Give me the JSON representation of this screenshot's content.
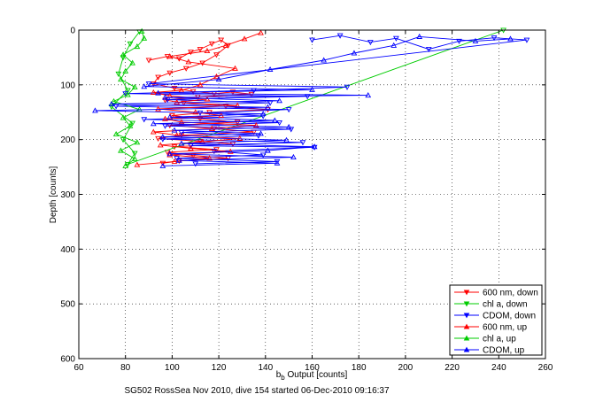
{
  "chart_data": {
    "type": "line",
    "caption": "SG502 RossSea Nov 2010, dive 154 started 06-Dec-2010 09:16:37",
    "xlabel_main": "b",
    "xlabel_sub": "b",
    "xlabel_rest": " Output [counts]",
    "ylabel": "Depth [counts]",
    "xlim": [
      60,
      260
    ],
    "ylim": [
      0,
      600
    ],
    "y_reversed": true,
    "grid": true,
    "legend_position": "bottom-right",
    "xticks": [
      "60",
      "80",
      "100",
      "120",
      "140",
      "160",
      "180",
      "200",
      "220",
      "240",
      "260"
    ],
    "yticks": [
      "0",
      "100",
      "200",
      "300",
      "400",
      "500",
      "600"
    ],
    "series": [
      {
        "name": "600 nm, down",
        "color": "#ff0000",
        "marker": "triangle-down",
        "points": [
          [
            90,
            55
          ],
          [
            98,
            48
          ],
          [
            103,
            52
          ],
          [
            108,
            40
          ],
          [
            112,
            35
          ],
          [
            117,
            25
          ],
          [
            121,
            18
          ],
          [
            124,
            28
          ],
          [
            119,
            45
          ],
          [
            113,
            60
          ],
          [
            106,
            70
          ],
          [
            99,
            78
          ],
          [
            94,
            86
          ],
          [
            92,
            98
          ],
          [
            101,
            106
          ],
          [
            109,
            112
          ],
          [
            118,
            116
          ],
          [
            126,
            113
          ],
          [
            134,
            117
          ],
          [
            111,
            122
          ],
          [
            97,
            128
          ],
          [
            105,
            133
          ],
          [
            123,
            139
          ],
          [
            141,
            145
          ],
          [
            116,
            150
          ],
          [
            100,
            156
          ],
          [
            112,
            162
          ],
          [
            128,
            168
          ],
          [
            99,
            174
          ],
          [
            118,
            180
          ],
          [
            135,
            186
          ],
          [
            104,
            192
          ],
          [
            94,
            198
          ],
          [
            112,
            203
          ],
          [
            126,
            208
          ],
          [
            101,
            213
          ],
          [
            119,
            218
          ],
          [
            98,
            223
          ],
          [
            109,
            229
          ],
          [
            124,
            234
          ],
          [
            103,
            239
          ],
          [
            96,
            243
          ]
        ]
      },
      {
        "name": "chl a, down",
        "color": "#00cc00",
        "marker": "triangle-down",
        "points": [
          [
            86,
            3
          ],
          [
            82,
            25
          ],
          [
            79,
            50
          ],
          [
            77,
            80
          ],
          [
            81,
            110
          ],
          [
            74,
            140
          ],
          [
            83,
            170
          ],
          [
            79,
            200
          ],
          [
            84,
            225
          ],
          [
            81,
            245
          ],
          [
            242,
            0
          ]
        ]
      },
      {
        "name": "CDOM, down",
        "color": "#0000ff",
        "marker": "triangle-down",
        "points": [
          [
            160,
            18
          ],
          [
            172,
            10
          ],
          [
            185,
            22
          ],
          [
            196,
            15
          ],
          [
            210,
            35
          ],
          [
            223,
            20
          ],
          [
            238,
            14
          ],
          [
            252,
            18
          ],
          [
            90,
            98
          ],
          [
            175,
            104
          ],
          [
            135,
            110
          ],
          [
            80,
            116
          ],
          [
            158,
            121
          ],
          [
            98,
            127
          ],
          [
            142,
            133
          ],
          [
            76,
            139
          ],
          [
            150,
            145
          ],
          [
            112,
            151
          ],
          [
            139,
            157
          ],
          [
            88,
            163
          ],
          [
            146,
            169
          ],
          [
            97,
            175
          ],
          [
            151,
            181
          ],
          [
            104,
            187
          ],
          [
            137,
            193
          ],
          [
            96,
            199
          ],
          [
            156,
            205
          ],
          [
            108,
            211
          ],
          [
            161,
            214
          ],
          [
            118,
            221
          ],
          [
            139,
            228
          ],
          [
            102,
            234
          ],
          [
            145,
            240
          ],
          [
            110,
            244
          ]
        ]
      },
      {
        "name": "600 nm, up",
        "color": "#ff0000",
        "marker": "triangle-up",
        "points": [
          [
            85,
            246
          ],
          [
            101,
            240
          ],
          [
            116,
            234
          ],
          [
            99,
            228
          ],
          [
            125,
            222
          ],
          [
            108,
            216
          ],
          [
            95,
            210
          ],
          [
            113,
            204
          ],
          [
            129,
            198
          ],
          [
            102,
            192
          ],
          [
            92,
            186
          ],
          [
            117,
            180
          ],
          [
            136,
            174
          ],
          [
            104,
            168
          ],
          [
            97,
            162
          ],
          [
            121,
            156
          ],
          [
            110,
            150
          ],
          [
            94,
            144
          ],
          [
            128,
            138
          ],
          [
            102,
            132
          ],
          [
            115,
            126
          ],
          [
            99,
            120
          ],
          [
            92,
            114
          ],
          [
            104,
            110
          ],
          [
            112,
            100
          ],
          [
            119,
            85
          ],
          [
            127,
            70
          ],
          [
            107,
            58
          ],
          [
            99,
            48
          ],
          [
            115,
            38
          ],
          [
            123,
            28
          ],
          [
            131,
            16
          ],
          [
            138,
            5
          ]
        ]
      },
      {
        "name": "chl a, up",
        "color": "#00cc00",
        "marker": "triangle-up",
        "points": [
          [
            80,
            248
          ],
          [
            84,
            235
          ],
          [
            78,
            220
          ],
          [
            85,
            205
          ],
          [
            76,
            190
          ],
          [
            82,
            175
          ],
          [
            79,
            160
          ],
          [
            86,
            145
          ],
          [
            75,
            130
          ],
          [
            81,
            118
          ],
          [
            84,
            104
          ],
          [
            78,
            90
          ],
          [
            80,
            75
          ],
          [
            83,
            60
          ],
          [
            79,
            45
          ],
          [
            85,
            30
          ],
          [
            88,
            15
          ],
          [
            87,
            2
          ]
        ]
      },
      {
        "name": "CDOM, up",
        "color": "#0000ff",
        "marker": "triangle-up",
        "points": [
          [
            96,
            248
          ],
          [
            145,
            243
          ],
          [
            103,
            238
          ],
          [
            152,
            232
          ],
          [
            99,
            226
          ],
          [
            141,
            220
          ],
          [
            161,
            213
          ],
          [
            104,
            207
          ],
          [
            149,
            201
          ],
          [
            96,
            195
          ],
          [
            138,
            189
          ],
          [
            101,
            183
          ],
          [
            150,
            177
          ],
          [
            92,
            171
          ],
          [
            144,
            165
          ],
          [
            99,
            159
          ],
          [
            139,
            153
          ],
          [
            67,
            147
          ],
          [
            141,
            141
          ],
          [
            74,
            135
          ],
          [
            146,
            129
          ],
          [
            97,
            123
          ],
          [
            184,
            119
          ],
          [
            94,
            115
          ],
          [
            160,
            109
          ],
          [
            88,
            103
          ],
          [
            120,
            90
          ],
          [
            142,
            72
          ],
          [
            165,
            55
          ],
          [
            178,
            42
          ],
          [
            195,
            28
          ],
          [
            206,
            12
          ],
          [
            230,
            20
          ],
          [
            245,
            16
          ]
        ]
      }
    ]
  }
}
